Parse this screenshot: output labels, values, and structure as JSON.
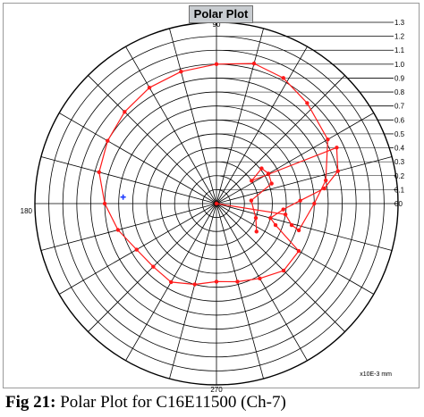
{
  "window": {
    "title": "Polar Plot"
  },
  "caption": {
    "label": "Fig 21:",
    "text": " Polar Plot for C16E11500 (Ch-7)"
  },
  "colors": {
    "trace": "#ff1a1a",
    "marker": "#1f3cff",
    "grid": "#000000",
    "background": "#ffffff",
    "title_bg": "#c8ccd0"
  },
  "chart_data": {
    "type": "scatter",
    "coordinate_system": "polar",
    "title": "Polar Plot",
    "units": "x10E-3 mm",
    "angle_labels": [
      "90",
      "180",
      "270",
      "00"
    ],
    "radial_ticks": [
      "1.3",
      "1.2",
      "1.1",
      "1.0",
      "0.9",
      "0.8",
      "0.7",
      "0.6",
      "0.5",
      "0.4",
      "0.3",
      "0.2",
      "0.1",
      "00"
    ],
    "rlim": [
      0,
      1.3
    ],
    "grid": true,
    "series": [
      {
        "points": [
          {
            "theta": 0,
            "r": 0.0
          },
          {
            "theta": -9,
            "r": 0.5
          },
          {
            "theta": -16,
            "r": 0.56
          },
          {
            "theta": -18,
            "r": 0.62
          },
          {
            "theta": 0,
            "r": 0.7
          },
          {
            "theta": 12,
            "r": 0.8
          },
          {
            "theta": 30,
            "r": 0.92
          },
          {
            "theta": 48,
            "r": 0.97
          },
          {
            "theta": 62,
            "r": 1.02
          },
          {
            "theta": 75,
            "r": 1.04
          },
          {
            "theta": 90,
            "r": 1.0
          },
          {
            "theta": 105,
            "r": 0.98
          },
          {
            "theta": 120,
            "r": 0.96
          },
          {
            "theta": 135,
            "r": 0.93
          },
          {
            "theta": 150,
            "r": 0.9
          },
          {
            "theta": 165,
            "r": 0.87
          },
          {
            "theta": 180,
            "r": 0.8
          },
          {
            "theta": 195,
            "r": 0.73
          },
          {
            "theta": 210,
            "r": 0.66
          },
          {
            "theta": 225,
            "r": 0.64
          },
          {
            "theta": 240,
            "r": 0.65
          },
          {
            "theta": 255,
            "r": 0.6
          },
          {
            "theta": 270,
            "r": 0.56
          },
          {
            "theta": 285,
            "r": 0.58
          },
          {
            "theta": 300,
            "r": 0.62
          },
          {
            "theta": 315,
            "r": 0.68
          },
          {
            "theta": 330,
            "r": 0.68
          },
          {
            "theta": 340,
            "r": 0.45
          },
          {
            "theta": 345,
            "r": 0.4
          },
          {
            "theta": 355,
            "r": 0.48
          },
          {
            "theta": 2,
            "r": 0.6
          },
          {
            "theta": 8,
            "r": 0.78
          },
          {
            "theta": 15,
            "r": 0.9
          },
          {
            "theta": 25,
            "r": 0.95
          },
          {
            "theta": 33,
            "r": 0.3
          },
          {
            "theta": 38,
            "r": 0.41
          },
          {
            "theta": 30,
            "r": 0.43
          },
          {
            "theta": 20,
            "r": 0.42
          },
          {
            "theta": 5,
            "r": 0.25
          },
          {
            "theta": -20,
            "r": 0.3
          },
          {
            "theta": -35,
            "r": 0.35
          }
        ]
      }
    ],
    "marker_point": {
      "theta": 176,
      "r": 0.67
    }
  }
}
